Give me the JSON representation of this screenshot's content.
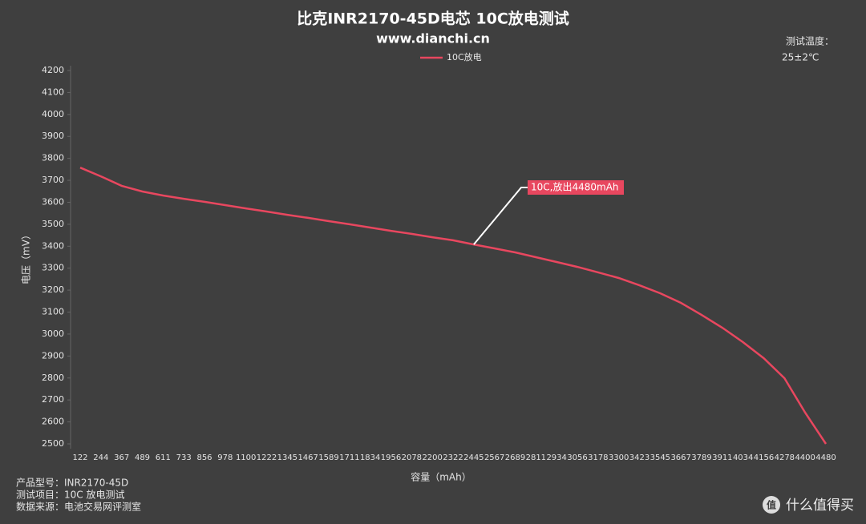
{
  "chart_data": {
    "type": "line",
    "title": "比克INR2170-45D电芯 10C放电测试",
    "subtitle": "www.dianchi.cn",
    "x_label": "容量（mAh）",
    "y_label": "电压（mV）",
    "categories": [
      "122",
      "244",
      "367",
      "489",
      "611",
      "733",
      "856",
      "978",
      "1100",
      "1222",
      "1345",
      "1467",
      "1589",
      "1711",
      "1834",
      "1956",
      "2078",
      "2200",
      "2322",
      "2445",
      "2567",
      "2689",
      "2811",
      "2934",
      "3056",
      "3178",
      "3300",
      "3423",
      "3545",
      "3667",
      "3789",
      "3911",
      "4034",
      "4156",
      "4278",
      "4400",
      "4480"
    ],
    "series": [
      {
        "name": "10C放电",
        "color": "#e8475f",
        "values": [
          3758,
          3718,
          3675,
          3649,
          3631,
          3616,
          3602,
          3587,
          3572,
          3558,
          3543,
          3529,
          3514,
          3500,
          3485,
          3470,
          3456,
          3441,
          3427,
          3408,
          3390,
          3372,
          3350,
          3328,
          3306,
          3281,
          3255,
          3222,
          3186,
          3142,
          3087,
          3029,
          2963,
          2890,
          2799,
          2642,
          2500
        ]
      }
    ],
    "ylim": [
      2500,
      4200
    ],
    "yticks": [
      2500,
      2600,
      2700,
      2800,
      2900,
      3000,
      3100,
      3200,
      3300,
      3400,
      3500,
      3600,
      3700,
      3800,
      3900,
      4000,
      4100,
      4200
    ],
    "grid": false,
    "legend": "top",
    "annotation": "10C,放出4480mAh",
    "note_title": "测试温度：",
    "note_value": "25±2℃"
  },
  "footer": [
    "产品型号：INR2170-45D",
    "测试项目：10C 放电测试",
    "数据来源：电池交易网评测室"
  ],
  "watermark": {
    "icon": "值",
    "text": "什么值得买"
  }
}
